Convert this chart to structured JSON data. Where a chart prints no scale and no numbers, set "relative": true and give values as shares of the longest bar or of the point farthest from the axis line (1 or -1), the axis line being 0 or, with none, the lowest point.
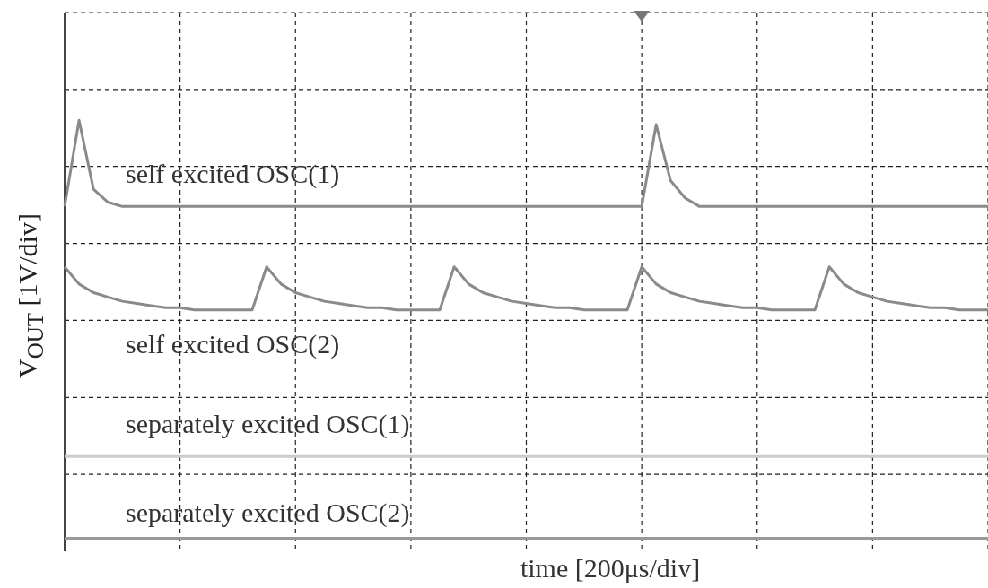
{
  "chart_data": {
    "type": "line",
    "relative": true,
    "grid": true,
    "legend": false,
    "xlabel": "time [200μs/div]",
    "ylabel": "V$_{OUT}$ [1V/div]",
    "categories": [
      null,
      null,
      null,
      null,
      null,
      null,
      null,
      null,
      null,
      null,
      null,
      null,
      null,
      null,
      null,
      null,
      null,
      null,
      null,
      null,
      null,
      null,
      null,
      null,
      null,
      null,
      null,
      null,
      null,
      null,
      null,
      null,
      null,
      null,
      null,
      null,
      null,
      null,
      null,
      null,
      null,
      null,
      null,
      null,
      null,
      null,
      null,
      null,
      null,
      null,
      null,
      null,
      null,
      null,
      null,
      null,
      null,
      null,
      null,
      null,
      null,
      null,
      null,
      null,
      null
    ],
    "series": [
      {
        "name": "self excited OSC(1)",
        "color": "#8a8a8a",
        "values": [
          0.8,
          1.0,
          0.84,
          0.81,
          0.8,
          0.8,
          0.8,
          0.8,
          0.8,
          0.8,
          0.8,
          0.8,
          0.8,
          0.8,
          0.8,
          0.8,
          0.8,
          0.8,
          0.8,
          0.8,
          0.8,
          0.8,
          0.8,
          0.8,
          0.8,
          0.8,
          0.8,
          0.8,
          0.8,
          0.8,
          0.8,
          0.8,
          0.8,
          0.8,
          0.8,
          0.8,
          0.8,
          0.8,
          0.8,
          0.8,
          0.8,
          0.99,
          0.86,
          0.82,
          0.8,
          0.8,
          0.8,
          0.8,
          0.8,
          0.8,
          0.8,
          0.8,
          0.8,
          0.8,
          0.8,
          0.8,
          0.8,
          0.8,
          0.8,
          0.8,
          0.8,
          0.8,
          0.8,
          0.8,
          0.8
        ]
      },
      {
        "name": "self excited OSC(2)",
        "color": "#8a8a8a",
        "values": [
          0.66,
          0.62,
          0.6,
          0.59,
          0.58,
          0.575,
          0.57,
          0.565,
          0.565,
          0.56,
          0.56,
          0.56,
          0.56,
          0.56,
          0.66,
          0.62,
          0.6,
          0.59,
          0.58,
          0.575,
          0.57,
          0.565,
          0.565,
          0.56,
          0.56,
          0.56,
          0.56,
          0.66,
          0.62,
          0.6,
          0.59,
          0.58,
          0.575,
          0.57,
          0.565,
          0.565,
          0.56,
          0.56,
          0.56,
          0.56,
          0.66,
          0.62,
          0.6,
          0.59,
          0.58,
          0.575,
          0.57,
          0.565,
          0.565,
          0.56,
          0.56,
          0.56,
          0.56,
          0.66,
          0.62,
          0.6,
          0.59,
          0.58,
          0.575,
          0.57,
          0.565,
          0.565,
          0.56,
          0.56,
          0.56
        ]
      },
      {
        "name": "separately excited OSC(1)",
        "color": "#cccccc",
        "values": [
          0.22,
          0.22,
          0.22,
          0.22,
          0.22,
          0.22,
          0.22,
          0.22,
          0.22,
          0.22,
          0.22,
          0.22,
          0.22,
          0.22,
          0.22,
          0.22,
          0.22,
          0.22,
          0.22,
          0.22,
          0.22,
          0.22,
          0.22,
          0.22,
          0.22,
          0.22,
          0.22,
          0.22,
          0.22,
          0.22,
          0.22,
          0.22,
          0.22,
          0.22,
          0.22,
          0.22,
          0.22,
          0.22,
          0.22,
          0.22,
          0.22,
          0.22,
          0.22,
          0.22,
          0.22,
          0.22,
          0.22,
          0.22,
          0.22,
          0.22,
          0.22,
          0.22,
          0.22,
          0.22,
          0.22,
          0.22,
          0.22,
          0.22,
          0.22,
          0.22,
          0.22,
          0.22,
          0.22,
          0.22,
          0.22
        ]
      },
      {
        "name": "separately excited OSC(2)",
        "color": "#999999",
        "values": [
          0.03,
          0.03,
          0.03,
          0.03,
          0.03,
          0.03,
          0.03,
          0.03,
          0.03,
          0.03,
          0.03,
          0.03,
          0.03,
          0.03,
          0.03,
          0.03,
          0.03,
          0.03,
          0.03,
          0.03,
          0.03,
          0.03,
          0.03,
          0.03,
          0.03,
          0.03,
          0.03,
          0.03,
          0.03,
          0.03,
          0.03,
          0.03,
          0.03,
          0.03,
          0.03,
          0.03,
          0.03,
          0.03,
          0.03,
          0.03,
          0.03,
          0.03,
          0.03,
          0.03,
          0.03,
          0.03,
          0.03,
          0.03,
          0.03,
          0.03,
          0.03,
          0.03,
          0.03,
          0.03,
          0.03,
          0.03,
          0.03,
          0.03,
          0.03,
          0.03,
          0.03,
          0.03,
          0.03,
          0.03,
          0.03
        ]
      }
    ]
  }
}
